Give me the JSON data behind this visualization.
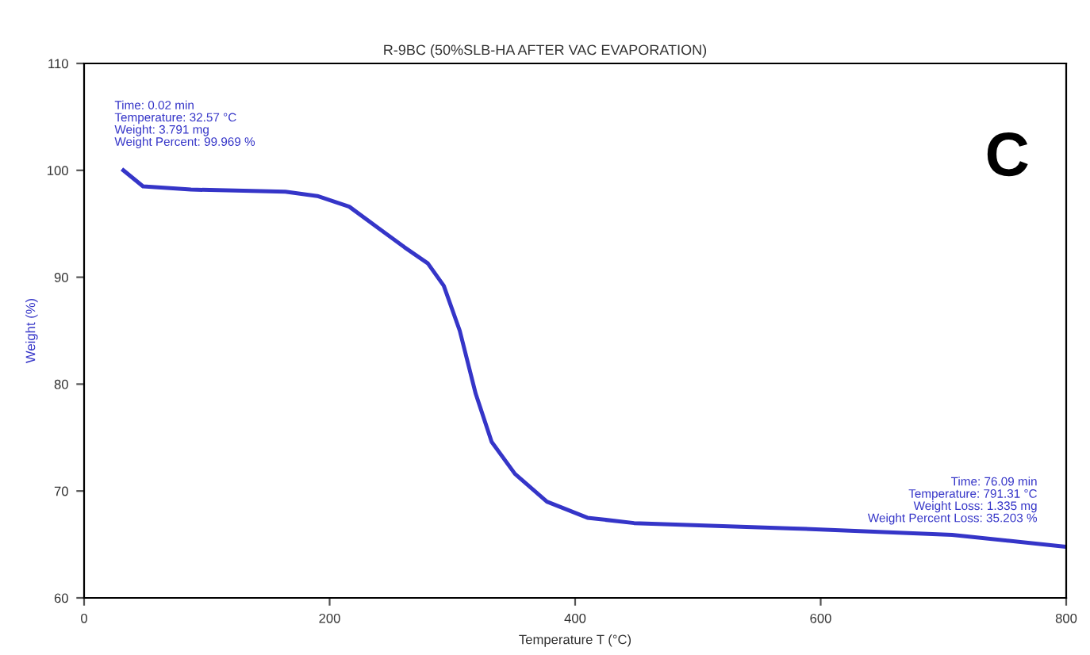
{
  "chart_data": {
    "type": "line",
    "title": "R-9BC (50%SLB-HA AFTER VAC EVAPORATION)",
    "xlabel": "Temperature T (°C)",
    "ylabel": "Weight (%)",
    "x": [
      32,
      48,
      87,
      164,
      190,
      216,
      242,
      261,
      280,
      293,
      306,
      319,
      332,
      351,
      377,
      410,
      448,
      578,
      707,
      798
    ],
    "series": [
      {
        "color": "#3535c8",
        "values": [
          100,
          98.5,
          98.2,
          98.0,
          97.6,
          96.6,
          94.4,
          92.8,
          91.3,
          89.2,
          85.0,
          79.1,
          74.6,
          71.6,
          69.0,
          67.5,
          67.0,
          66.5,
          65.9,
          64.8
        ]
      }
    ],
    "xlim": [
      0,
      800
    ],
    "ylim": [
      60,
      110
    ],
    "xticks": [
      0,
      200,
      400,
      600,
      800
    ],
    "yticks": [
      60,
      70,
      80,
      90,
      100,
      110
    ],
    "annotations": [
      {
        "text": "Time: 0.02 min\nTemperature: 32.57 °C\nWeight: 3.791 mg\nWeight Percent: 99.969 %",
        "x": 32,
        "y": 100
      },
      {
        "text": "Time: 76.09 min\nTemperature: 791.31 °C\nWeight Loss: 1.335 mg\nWeight Percent Loss: 35.203 %",
        "x": 798,
        "y": 64.8
      },
      "C"
    ],
    "grid": false,
    "legend": false
  }
}
